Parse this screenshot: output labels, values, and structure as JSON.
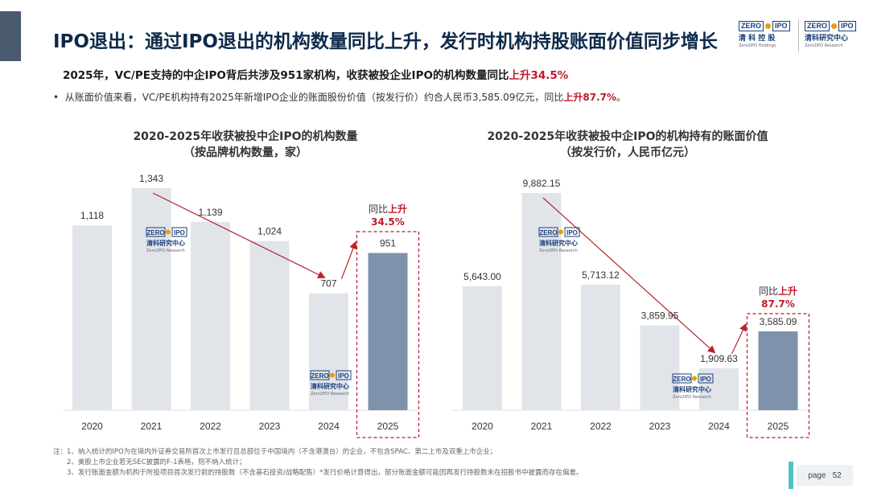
{
  "header": {
    "title": "IPO退出：通过IPO退出的机构数量同比上升，发行时机构持股账面价值同步增长",
    "logo1": {
      "zero": "ZERO",
      "ipo": "IPO",
      "cn": "清 科 控 股",
      "en": "Zero2IPO Holdings"
    },
    "logo2": {
      "zero": "ZERO",
      "ipo": "IPO",
      "cn": "清科研究中心",
      "en": "Zero2IPO Research"
    }
  },
  "summary": {
    "lead": "2025年，VC/PE支持的中企IPO背后共涉及951家机构，收获被投企业IPO的机构数量同比",
    "lead_highlight": "上升34.5%",
    "bullet_marker": "•",
    "bullet": "从账面价值来看，VC/PE机构持有2025年新增IPO企业的账面股份价值（按发行价）约合人民币3,585.09亿元，同比",
    "bullet_highlight": "上升87.7%",
    "bullet_end": "。"
  },
  "watermark": {
    "zero": "ZERO",
    "ipo": "IPO",
    "cn": "清科研究中心",
    "en": "Zero2IPO Research"
  },
  "colors": {
    "bar": "#e1e5ea",
    "bar_highlight": "#7f92ab",
    "accent_red": "#c0182a",
    "arrow": "#b5242b",
    "title": "#0e2a4a"
  },
  "chart_data": [
    {
      "type": "bar",
      "title": "2020-2025年收获被投中企IPO的机构数量",
      "subtitle": "（按品牌机构数量，家）",
      "categories": [
        "2020",
        "2021",
        "2022",
        "2023",
        "2024",
        "2025"
      ],
      "values": [
        1118,
        1343,
        1139,
        1024,
        707,
        951
      ],
      "value_labels": [
        "1,118",
        "1,343",
        "1,139",
        "1,024",
        "707",
        "951"
      ],
      "ylim": [
        0,
        1343
      ],
      "highlight_index": 5,
      "yoy_prefix": "同比",
      "yoy_word": "上升",
      "yoy_value": "34.5%"
    },
    {
      "type": "bar",
      "title": "2020-2025年收获被投中企IPO的机构持有的账面价值",
      "subtitle": "（按发行价，人民币亿元）",
      "categories": [
        "2020",
        "2021",
        "2022",
        "2023",
        "2024",
        "2025"
      ],
      "values": [
        5643.0,
        9882.15,
        5713.12,
        3859.95,
        1909.63,
        3585.09
      ],
      "value_labels": [
        "5,643.00",
        "9,882.15",
        "5,713.12",
        "3,859.95",
        "1,909.63",
        "3,585.09"
      ],
      "ylim": [
        0,
        9882.15
      ],
      "highlight_index": 5,
      "yoy_prefix": "同比",
      "yoy_word": "上升",
      "yoy_value": "87.7%"
    }
  ],
  "notes": {
    "lines": [
      "注：1、纳入统计的IPO为在境内外证券交易所首次上市发行且总部位于中国境内（不含港澳台）的企业，不包含SPAC、第二上市及双重上市企业；",
      "2、美股上市企业若无SEC披露的F-1表格，则不纳入统计；",
      "3、发行账面金额为机构于所投项目首次发行前的持股数（不含基石投资/战略配售）*发行价格计算得出，部分账面金额可能因再发行持股数未在招股书中披露而存在偏差。"
    ]
  },
  "page": {
    "label": "page",
    "number": "52"
  }
}
